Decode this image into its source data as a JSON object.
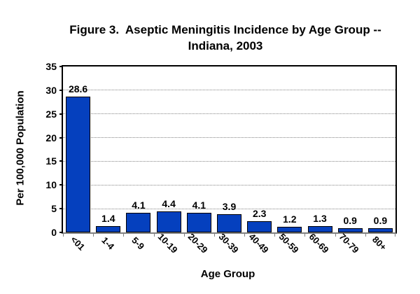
{
  "figure": {
    "title_line1": "Figure 3.  Aseptic Meningitis Incidence by Age Group --",
    "title_line2": "Indiana, 2003"
  },
  "chart_data": {
    "type": "bar",
    "title": "Figure 3. Aseptic Meningitis Incidence by Age Group -- Indiana, 2003",
    "categories": [
      "<01",
      "1-4",
      "5-9",
      "10-19",
      "20-29",
      "30-39",
      "40-49",
      "50-59",
      "60-69",
      "70-79",
      "80+"
    ],
    "values": [
      28.6,
      1.4,
      4.1,
      4.4,
      4.1,
      3.9,
      2.3,
      1.2,
      1.3,
      0.9,
      0.9
    ],
    "value_labels": [
      "28.6",
      "1.4",
      "4.1",
      "4.4",
      "4.1",
      "3.9",
      "2.3",
      "1.2",
      "1.3",
      "0.9",
      "0.9"
    ],
    "xlabel": "Age Group",
    "ylabel": "Per 100,000 Population",
    "ylim": [
      0,
      35
    ],
    "yticks": [
      0,
      5,
      10,
      15,
      20,
      25,
      30,
      35
    ],
    "grid": "horizontal dotted gridlines at each y tick",
    "legend": "none",
    "colors": {
      "bar_fill": "#0540BE",
      "bar_border": "#000000",
      "gridline": "#858585",
      "category_axis": "#808080",
      "text": "#000000",
      "background": "#FFFFFF"
    }
  }
}
